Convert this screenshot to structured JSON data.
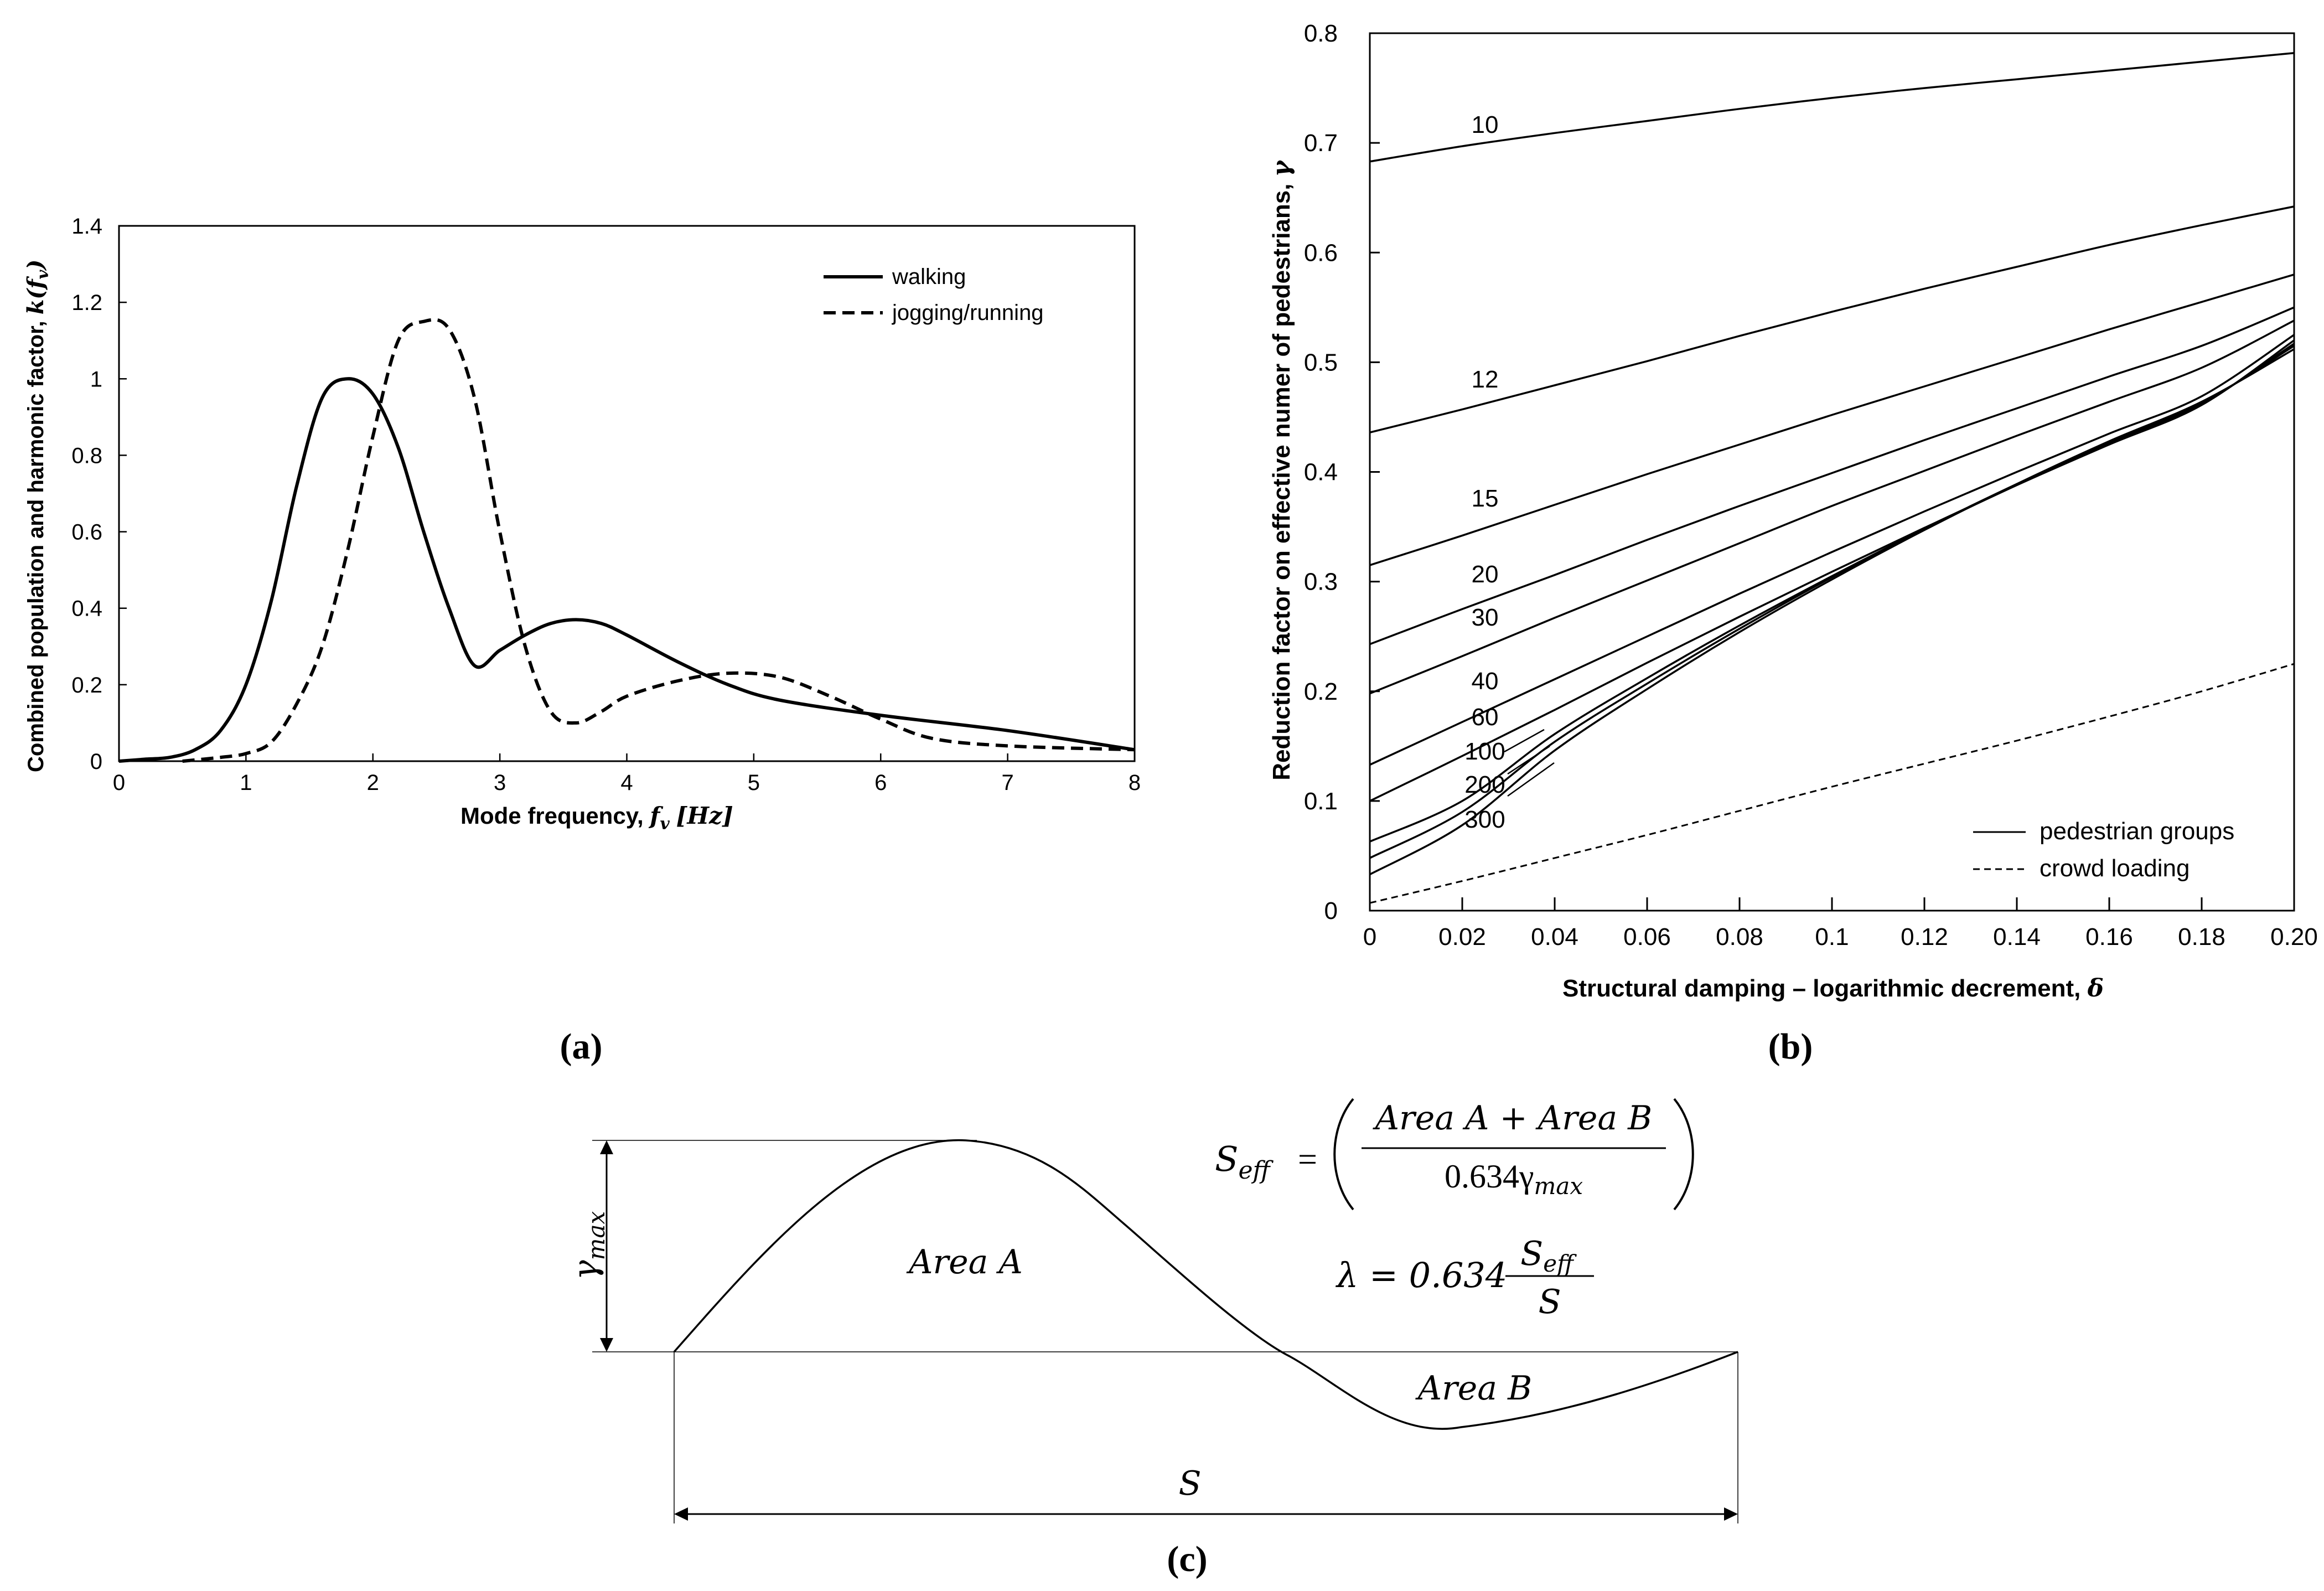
{
  "panel_labels": {
    "a": "(a)",
    "b": "(b)",
    "c": "(c)"
  },
  "chart_data": [
    {
      "panel": "(a)",
      "type": "line",
      "title": "",
      "xlabel": "Mode frequency, f_v [Hz]",
      "xlabel_plain": "Mode frequency, ",
      "xlabel_math": "f",
      "xlabel_sub": "v",
      "xlabel_unit": "[Hz]",
      "ylabel": "Combined population and harmonic factor, k(f_v)",
      "ylabel_plain": "Combined population and harmonic factor, ",
      "ylabel_math": "k(f",
      "ylabel_sub": "v",
      "ylabel_close": ")",
      "xlim": [
        0,
        8
      ],
      "ylim": [
        0,
        1.4
      ],
      "xticks": [
        "0",
        "1",
        "2",
        "3",
        "4",
        "5",
        "6",
        "7",
        "8"
      ],
      "yticks": [
        "0",
        "0.2",
        "0.4",
        "0.6",
        "0.8",
        "1",
        "1.2",
        "1.4"
      ],
      "grid": false,
      "legend_position": "top-right",
      "series": [
        {
          "name": "walking",
          "style": "solid",
          "x": [
            0,
            0.2,
            0.4,
            0.6,
            0.8,
            1.0,
            1.2,
            1.4,
            1.6,
            1.8,
            2.0,
            2.2,
            2.4,
            2.6,
            2.8,
            3.0,
            3.2,
            3.4,
            3.6,
            3.8,
            4.0,
            4.4,
            4.8,
            5.2,
            6.0,
            7.0,
            8.0
          ],
          "y": [
            0.0,
            0.005,
            0.01,
            0.03,
            0.08,
            0.2,
            0.42,
            0.72,
            0.95,
            1.0,
            0.96,
            0.82,
            0.6,
            0.4,
            0.25,
            0.29,
            0.33,
            0.36,
            0.37,
            0.36,
            0.33,
            0.26,
            0.2,
            0.16,
            0.12,
            0.08,
            0.03
          ]
        },
        {
          "name": "jogging/running",
          "style": "dashed",
          "x": [
            0.5,
            0.8,
            1.0,
            1.2,
            1.4,
            1.6,
            1.8,
            2.0,
            2.2,
            2.4,
            2.6,
            2.8,
            3.0,
            3.2,
            3.4,
            3.6,
            3.8,
            4.0,
            4.4,
            4.8,
            5.2,
            5.6,
            6.0,
            6.4,
            7.0,
            8.0
          ],
          "y": [
            0.0,
            0.01,
            0.02,
            0.05,
            0.15,
            0.3,
            0.55,
            0.85,
            1.1,
            1.15,
            1.13,
            0.95,
            0.6,
            0.3,
            0.13,
            0.1,
            0.13,
            0.17,
            0.21,
            0.23,
            0.22,
            0.17,
            0.11,
            0.06,
            0.04,
            0.03
          ]
        }
      ]
    },
    {
      "panel": "(b)",
      "type": "line",
      "title": "",
      "xlabel": "Structural damping – logarithmic decrement, δ",
      "xlabel_plain": "Structural damping – logarithmic decrement, ",
      "xlabel_math": "δ",
      "ylabel": "Reduction factor on effective numer of pedestrians, γ",
      "ylabel_plain": "Reduction factor on effective numer of pedestrians, ",
      "ylabel_math": "γ",
      "xlim": [
        0,
        0.2
      ],
      "ylim": [
        0,
        0.8
      ],
      "xticks": [
        "0",
        "0.02",
        "0.04",
        "0.06",
        "0.08",
        "0.1",
        "0.12",
        "0.14",
        "0.16",
        "0.18",
        "0.20"
      ],
      "yticks": [
        "0",
        "0.1",
        "0.2",
        "0.3",
        "0.4",
        "0.5",
        "0.6",
        "0.7",
        "0.8"
      ],
      "grid": false,
      "legend_position": "bottom-right",
      "legend": [
        {
          "label": "pedestrian groups",
          "style": "solid"
        },
        {
          "label": "crowd loading",
          "style": "dashed"
        }
      ],
      "curve_labels": [
        "10",
        "12",
        "15",
        "20",
        "30",
        "40",
        "60",
        "100",
        "200",
        "300"
      ],
      "series": [
        {
          "name": "10",
          "style": "solid",
          "x": [
            0,
            0.02,
            0.04,
            0.06,
            0.08,
            0.1,
            0.12,
            0.14,
            0.16,
            0.18,
            0.2
          ],
          "y": [
            0.683,
            0.697,
            0.709,
            0.72,
            0.731,
            0.741,
            0.75,
            0.758,
            0.766,
            0.774,
            0.782
          ]
        },
        {
          "name": "12",
          "style": "solid",
          "x": [
            0,
            0.02,
            0.04,
            0.06,
            0.08,
            0.1,
            0.12,
            0.14,
            0.16,
            0.18,
            0.2
          ],
          "y": [
            0.436,
            0.457,
            0.479,
            0.501,
            0.524,
            0.546,
            0.567,
            0.587,
            0.607,
            0.625,
            0.642
          ]
        },
        {
          "name": "15",
          "style": "solid",
          "x": [
            0,
            0.02,
            0.04,
            0.06,
            0.08,
            0.1,
            0.12,
            0.14,
            0.16,
            0.18,
            0.2
          ],
          "y": [
            0.315,
            0.342,
            0.37,
            0.398,
            0.425,
            0.452,
            0.478,
            0.504,
            0.53,
            0.555,
            0.58
          ]
        },
        {
          "name": "20",
          "style": "solid",
          "x": [
            0,
            0.02,
            0.04,
            0.06,
            0.08,
            0.1,
            0.12,
            0.14,
            0.16,
            0.18,
            0.2
          ],
          "y": [
            0.243,
            0.275,
            0.306,
            0.338,
            0.369,
            0.399,
            0.429,
            0.458,
            0.487,
            0.515,
            0.55
          ]
        },
        {
          "name": "30",
          "style": "solid",
          "x": [
            0,
            0.02,
            0.04,
            0.06,
            0.08,
            0.1,
            0.12,
            0.14,
            0.16,
            0.18,
            0.2
          ],
          "y": [
            0.198,
            0.232,
            0.267,
            0.301,
            0.335,
            0.369,
            0.401,
            0.433,
            0.464,
            0.495,
            0.538
          ]
        },
        {
          "name": "40",
          "style": "solid",
          "x": [
            0,
            0.02,
            0.04,
            0.06,
            0.08,
            0.1,
            0.12,
            0.14,
            0.16,
            0.18,
            0.2
          ],
          "y": [
            0.133,
            0.172,
            0.211,
            0.25,
            0.289,
            0.327,
            0.364,
            0.4,
            0.435,
            0.469,
            0.525
          ]
        },
        {
          "name": "60",
          "style": "solid",
          "x": [
            0,
            0.02,
            0.04,
            0.06,
            0.08,
            0.1,
            0.12,
            0.14,
            0.16,
            0.18,
            0.2
          ],
          "y": [
            0.1,
            0.141,
            0.183,
            0.226,
            0.268,
            0.309,
            0.349,
            0.388,
            0.425,
            0.461,
            0.52
          ]
        },
        {
          "name": "100",
          "style": "solid",
          "x": [
            0,
            0.02,
            0.04,
            0.06,
            0.08,
            0.1,
            0.12,
            0.14,
            0.16,
            0.18,
            0.2
          ],
          "y": [
            0.063,
            0.1,
            0.161,
            0.212,
            0.26,
            0.305,
            0.348,
            0.388,
            0.426,
            0.462,
            0.517
          ]
        },
        {
          "name": "200",
          "style": "solid",
          "x": [
            0,
            0.02,
            0.04,
            0.06,
            0.08,
            0.1,
            0.12,
            0.14,
            0.16,
            0.18,
            0.2
          ],
          "y": [
            0.048,
            0.09,
            0.154,
            0.207,
            0.257,
            0.304,
            0.348,
            0.389,
            0.427,
            0.463,
            0.515
          ]
        },
        {
          "name": "300",
          "style": "solid",
          "x": [
            0,
            0.02,
            0.04,
            0.06,
            0.08,
            0.1,
            0.12,
            0.14,
            0.16,
            0.18,
            0.2
          ],
          "y": [
            0.033,
            0.078,
            0.146,
            0.202,
            0.254,
            0.302,
            0.347,
            0.389,
            0.428,
            0.464,
            0.512
          ]
        },
        {
          "name": "crowd loading",
          "style": "dashed",
          "x": [
            0,
            0.02,
            0.04,
            0.06,
            0.08,
            0.1,
            0.12,
            0.14,
            0.16,
            0.18,
            0.2
          ],
          "y": [
            0.007,
            0.027,
            0.048,
            0.069,
            0.091,
            0.113,
            0.134,
            0.155,
            0.177,
            0.2,
            0.225
          ]
        }
      ]
    },
    {
      "panel": "(c)",
      "type": "diagram",
      "title": "",
      "curve_description_y_relative": [
        0,
        0.5,
        1.0,
        0.68,
        0,
        -0.35,
        0
      ],
      "labels": {
        "gamma_max": "γ",
        "gamma_max_sub": "max",
        "area_a": "Area A",
        "area_b": "Area B",
        "span": "S"
      },
      "equations": {
        "s_eff_lhs": "S",
        "s_eff_lhs_sub": "eff",
        "equals": "=",
        "numerator": "Area A + Area B",
        "denominator_coeff": "0.634γ",
        "denominator_sub": "max",
        "lambda_lhs": "λ = 0.634",
        "lambda_num": "S",
        "lambda_num_sub": "eff",
        "lambda_den": "S"
      }
    }
  ]
}
